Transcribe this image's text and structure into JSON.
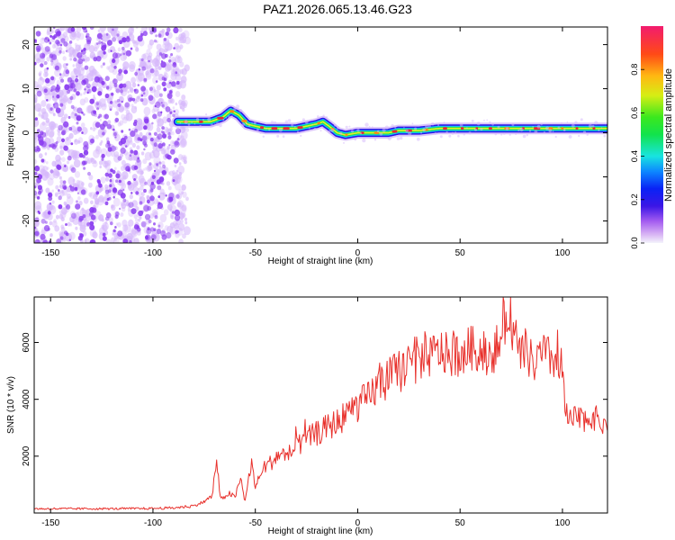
{
  "figure_title": "PAZ1.2026.065.13.46.G23",
  "colors": {
    "snr_line": "#e8312c",
    "ridge_core": "#e8263a",
    "scatter_dots": "#8a3cf0",
    "scatter_halo": "#d6b8fb"
  },
  "chart_data": [
    {
      "type": "heatmap",
      "title": "",
      "xlabel": "Height of straight line (km)",
      "ylabel": "Frequency (Hz)",
      "xlim": [
        -158,
        122
      ],
      "ylim": [
        -25,
        24
      ],
      "xticks": [
        -150,
        -100,
        -50,
        0,
        50,
        100
      ],
      "yticks": [
        -20,
        -10,
        0,
        10,
        20
      ],
      "noise_region_x": [
        -158,
        -83
      ],
      "ridge_start_x": -88,
      "ridge": {
        "x": [
          -88,
          -80,
          -72,
          -66,
          -62,
          -58,
          -54,
          -50,
          -45,
          -40,
          -35,
          -30,
          -25,
          -20,
          -17,
          -14,
          -10,
          -6,
          0,
          5,
          10,
          15,
          20,
          30,
          40,
          60,
          80,
          100,
          122
        ],
        "freq": [
          2.5,
          2.5,
          2.5,
          3.5,
          5,
          4,
          2,
          1.5,
          1,
          1,
          1,
          1,
          1.5,
          2,
          2.5,
          1.5,
          0,
          -0.5,
          0,
          0,
          0,
          0,
          0.5,
          0.5,
          1,
          1,
          1,
          1,
          1
        ]
      },
      "colorbar": {
        "label": "Normalized spectral amplitude",
        "range": [
          0,
          1
        ],
        "ticks": [
          0.0,
          0.2,
          0.4,
          0.6,
          0.8
        ]
      }
    },
    {
      "type": "line",
      "title": "",
      "xlabel": "Height of straight line (km)",
      "ylabel": "SNR (10 * v/v)",
      "xlim": [
        -158,
        122
      ],
      "ylim": [
        0,
        7600
      ],
      "xticks": [
        -150,
        -100,
        -50,
        0,
        50,
        100
      ],
      "yticks": [
        2000,
        4000,
        6000
      ],
      "series": [
        {
          "name": "SNR",
          "x": [
            -158,
            -140,
            -120,
            -100,
            -90,
            -80,
            -75,
            -71,
            -69,
            -67,
            -63,
            -60,
            -57,
            -55,
            -52,
            -50,
            -46,
            -42,
            -38,
            -35,
            -30,
            -25,
            -20,
            -15,
            -10,
            -5,
            0,
            5,
            10,
            15,
            20,
            25,
            30,
            35,
            40,
            45,
            50,
            55,
            60,
            65,
            70,
            74,
            78,
            82,
            86,
            90,
            95,
            100,
            101,
            103,
            106,
            110,
            115,
            120,
            122
          ],
          "values": [
            150,
            150,
            150,
            160,
            180,
            250,
            400,
            600,
            1900,
            450,
            700,
            550,
            1200,
            400,
            1800,
            900,
            1600,
            1800,
            2100,
            2000,
            2300,
            2600,
            2800,
            3000,
            3200,
            3500,
            3800,
            4000,
            4500,
            4700,
            5000,
            5200,
            5400,
            5500,
            5700,
            5500,
            5600,
            5800,
            5700,
            5600,
            6000,
            7400,
            5500,
            5700,
            5200,
            5600,
            5400,
            5400,
            3500,
            3200,
            3300,
            3300,
            3400,
            3100,
            3300
          ]
        }
      ]
    }
  ]
}
